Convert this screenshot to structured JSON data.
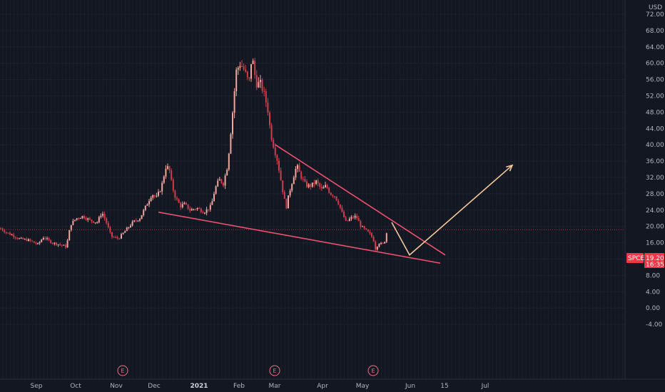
{
  "chart_data": {
    "type": "candlestick",
    "ticker": "SPCE",
    "currency": "USD",
    "last_price": "19.20",
    "countdown": "16:35",
    "y_range": [
      -6,
      76
    ],
    "y_ticks": [
      "72.00",
      "68.00",
      "64.00",
      "60.00",
      "56.00",
      "52.00",
      "48.00",
      "44.00",
      "40.00",
      "36.00",
      "32.00",
      "28.00",
      "24.00",
      "20.00",
      "16.00",
      "12.00",
      "8.00",
      "4.00",
      "0.00",
      "-4.00"
    ],
    "x_ticks": [
      {
        "label": "Sep"
      },
      {
        "label": "Oct"
      },
      {
        "label": "Nov"
      },
      {
        "label": "Dec"
      },
      {
        "label": "2021",
        "bold": true
      },
      {
        "label": "Feb"
      },
      {
        "label": "Mar"
      },
      {
        "label": "Apr"
      },
      {
        "label": "May"
      },
      {
        "label": "Jun"
      },
      {
        "label": "15"
      },
      {
        "label": "Jul"
      }
    ],
    "events": [
      "E",
      "E",
      "E"
    ],
    "price_path": [
      [
        0,
        19.5
      ],
      [
        8,
        18.5
      ],
      [
        15,
        18
      ],
      [
        25,
        17
      ],
      [
        40,
        16.6
      ],
      [
        52,
        15.6
      ],
      [
        60,
        17.4
      ],
      [
        72,
        16
      ],
      [
        82,
        15.6
      ],
      [
        92,
        15
      ],
      [
        98,
        20.5
      ],
      [
        106,
        22
      ],
      [
        115,
        22.5
      ],
      [
        125,
        21.5
      ],
      [
        135,
        21
      ],
      [
        142,
        23.5
      ],
      [
        148,
        21
      ],
      [
        155,
        17.5
      ],
      [
        165,
        17
      ],
      [
        175,
        19
      ],
      [
        185,
        21
      ],
      [
        195,
        22
      ],
      [
        205,
        25.5
      ],
      [
        212,
        28
      ],
      [
        218,
        27
      ],
      [
        225,
        29.5
      ],
      [
        232,
        35
      ],
      [
        237,
        33.5
      ],
      [
        240,
        30
      ],
      [
        245,
        27
      ],
      [
        252,
        25
      ],
      [
        258,
        25.5
      ],
      [
        265,
        24
      ],
      [
        275,
        24.5
      ],
      [
        285,
        23.5
      ],
      [
        295,
        25
      ],
      [
        300,
        29
      ],
      [
        306,
        31.5
      ],
      [
        312,
        30.5
      ],
      [
        318,
        35
      ],
      [
        325,
        48
      ],
      [
        330,
        58
      ],
      [
        336,
        60
      ],
      [
        342,
        58
      ],
      [
        348,
        55
      ],
      [
        352,
        62
      ],
      [
        358,
        55
      ],
      [
        364,
        55
      ],
      [
        370,
        52
      ],
      [
        375,
        48
      ],
      [
        378,
        43
      ],
      [
        382,
        40
      ],
      [
        388,
        36
      ],
      [
        392,
        32
      ],
      [
        396,
        28
      ],
      [
        400,
        24.5
      ],
      [
        404,
        28
      ],
      [
        410,
        32
      ],
      [
        415,
        35
      ],
      [
        420,
        32.5
      ],
      [
        428,
        30
      ],
      [
        435,
        30
      ],
      [
        442,
        31
      ],
      [
        450,
        29
      ],
      [
        456,
        30
      ],
      [
        462,
        28
      ],
      [
        468,
        27.5
      ],
      [
        474,
        25.5
      ],
      [
        478,
        23.5
      ],
      [
        484,
        21
      ],
      [
        490,
        22
      ],
      [
        498,
        22.5
      ],
      [
        505,
        20
      ],
      [
        512,
        19
      ],
      [
        518,
        18
      ],
      [
        522,
        17
      ],
      [
        525,
        14.5
      ],
      [
        530,
        16
      ],
      [
        535,
        15.5
      ],
      [
        540,
        17
      ],
      [
        542,
        20.5
      ]
    ],
    "annotations": [
      {
        "kind": "trendline",
        "from": {
          "x": 222,
          "y": 23.5
        },
        "to": {
          "x": 617,
          "y": 11
        }
      },
      {
        "kind": "trendline",
        "from": {
          "x": 386,
          "y": 40
        },
        "to": {
          "x": 624,
          "y": 13
        }
      },
      {
        "kind": "projection",
        "points": [
          {
            "x": 549,
            "y": 21
          },
          {
            "x": 574,
            "y": 13
          },
          {
            "x": 718,
            "y": 35
          }
        ]
      }
    ]
  }
}
